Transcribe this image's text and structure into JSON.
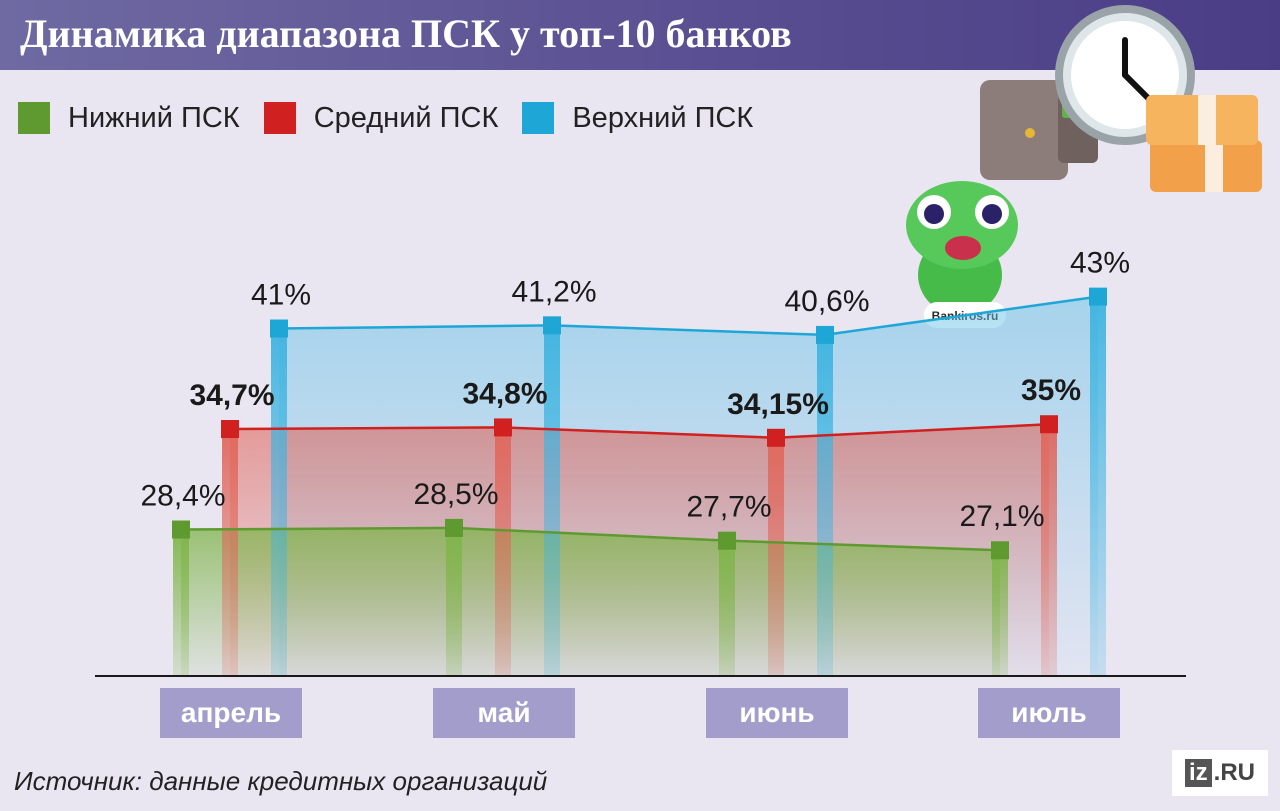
{
  "title": "Динамика диапазона ПСК у топ-10 банков",
  "legend": [
    {
      "label": "Нижний ПСК",
      "color": "#5e9a2f"
    },
    {
      "label": "Средний ПСК",
      "color": "#d0201f"
    },
    {
      "label": "Верхний ПСК",
      "color": "#1ea7d6"
    }
  ],
  "chart_data": {
    "type": "line",
    "categories": [
      "апрель",
      "май",
      "июнь",
      "июль"
    ],
    "series": [
      {
        "name": "Нижний ПСК",
        "color": "#5e9a2f",
        "values": [
          28.4,
          28.5,
          27.7,
          27.1
        ],
        "labels": [
          "28,4%",
          "28,5%",
          "27,7%",
          "27,1%"
        ]
      },
      {
        "name": "Средний ПСК",
        "color": "#d0201f",
        "values": [
          34.7,
          34.8,
          34.15,
          35
        ],
        "labels": [
          "34,7%",
          "34,8%",
          "34,15%",
          "35%"
        ]
      },
      {
        "name": "Верхний ПСК",
        "color": "#1ea7d6",
        "values": [
          41,
          41.2,
          40.6,
          43
        ],
        "labels": [
          "41%",
          "41,2%",
          "40,6%",
          "43%"
        ]
      }
    ],
    "area_fill": true
  },
  "mascot_label": "Bankiros.ru",
  "source": "Источник: данные кредитных организаций",
  "logo": {
    "iz": "iz",
    "ru": ".RU"
  }
}
